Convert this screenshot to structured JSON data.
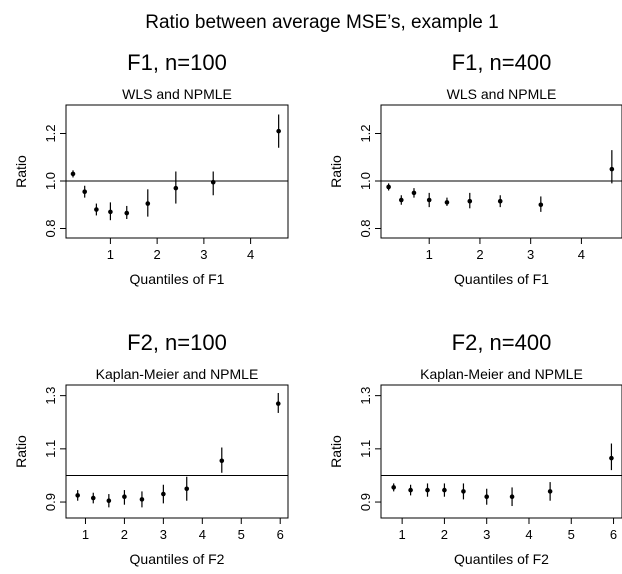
{
  "figure_title": "Ratio between average MSE’s, example 1",
  "chart_data": [
    {
      "type": "scatter",
      "panel_title": "F1, n=100",
      "title": "WLS and NPMLE",
      "xlabel": "Quantiles of F1",
      "ylabel": "Ratio",
      "xticks": [
        1,
        2,
        3,
        4
      ],
      "yticks": [
        0.8,
        1.0,
        1.2
      ],
      "ytick_labels": [
        "0.8",
        "1.0",
        "1.2"
      ],
      "xlim": [
        0.05,
        4.8
      ],
      "ylim": [
        0.76,
        1.32
      ],
      "reference_line": 1.0,
      "points": [
        {
          "x": 0.2,
          "y": 1.03,
          "lo": 1.015,
          "hi": 1.045
        },
        {
          "x": 0.45,
          "y": 0.955,
          "lo": 0.93,
          "hi": 0.98
        },
        {
          "x": 0.7,
          "y": 0.88,
          "lo": 0.855,
          "hi": 0.905
        },
        {
          "x": 1.0,
          "y": 0.87,
          "lo": 0.835,
          "hi": 0.91
        },
        {
          "x": 1.35,
          "y": 0.865,
          "lo": 0.84,
          "hi": 0.895
        },
        {
          "x": 1.8,
          "y": 0.905,
          "lo": 0.85,
          "hi": 0.965
        },
        {
          "x": 2.4,
          "y": 0.97,
          "lo": 0.905,
          "hi": 1.04
        },
        {
          "x": 3.2,
          "y": 0.995,
          "lo": 0.94,
          "hi": 1.04
        },
        {
          "x": 4.6,
          "y": 1.21,
          "lo": 1.14,
          "hi": 1.28
        }
      ]
    },
    {
      "type": "scatter",
      "panel_title": "F1, n=400",
      "title": "WLS and NPMLE",
      "xlabel": "Quantiles of F1",
      "ylabel": "Ratio",
      "xticks": [
        1,
        2,
        3,
        4
      ],
      "yticks": [
        0.8,
        1.0,
        1.2
      ],
      "ytick_labels": [
        "0.8",
        "1.0",
        "1.2"
      ],
      "xlim": [
        0.05,
        4.8
      ],
      "ylim": [
        0.76,
        1.32
      ],
      "reference_line": 1.0,
      "points": [
        {
          "x": 0.2,
          "y": 0.975,
          "lo": 0.96,
          "hi": 0.99
        },
        {
          "x": 0.45,
          "y": 0.92,
          "lo": 0.9,
          "hi": 0.94
        },
        {
          "x": 0.7,
          "y": 0.95,
          "lo": 0.93,
          "hi": 0.97
        },
        {
          "x": 1.0,
          "y": 0.92,
          "lo": 0.89,
          "hi": 0.95
        },
        {
          "x": 1.35,
          "y": 0.91,
          "lo": 0.895,
          "hi": 0.93
        },
        {
          "x": 1.8,
          "y": 0.915,
          "lo": 0.885,
          "hi": 0.95
        },
        {
          "x": 2.4,
          "y": 0.915,
          "lo": 0.89,
          "hi": 0.94
        },
        {
          "x": 3.2,
          "y": 0.9,
          "lo": 0.87,
          "hi": 0.935
        },
        {
          "x": 4.6,
          "y": 1.05,
          "lo": 0.99,
          "hi": 1.13
        }
      ]
    },
    {
      "type": "scatter",
      "panel_title": "F2, n=100",
      "title": "Kaplan-Meier and NPMLE",
      "xlabel": "Quantiles of F2",
      "ylabel": "Ratio",
      "xticks": [
        1,
        2,
        3,
        4,
        5,
        6
      ],
      "yticks": [
        0.9,
        1.1,
        1.3
      ],
      "ytick_labels": [
        "0.9",
        "1.1",
        "1.3"
      ],
      "xlim": [
        0.5,
        6.2
      ],
      "ylim": [
        0.84,
        1.34
      ],
      "reference_line": 1.0,
      "points": [
        {
          "x": 0.8,
          "y": 0.925,
          "lo": 0.905,
          "hi": 0.945
        },
        {
          "x": 1.2,
          "y": 0.915,
          "lo": 0.895,
          "hi": 0.935
        },
        {
          "x": 1.6,
          "y": 0.905,
          "lo": 0.88,
          "hi": 0.93
        },
        {
          "x": 2.0,
          "y": 0.92,
          "lo": 0.89,
          "hi": 0.945
        },
        {
          "x": 2.45,
          "y": 0.91,
          "lo": 0.88,
          "hi": 0.94
        },
        {
          "x": 3.0,
          "y": 0.93,
          "lo": 0.895,
          "hi": 0.965
        },
        {
          "x": 3.6,
          "y": 0.95,
          "lo": 0.905,
          "hi": 0.995
        },
        {
          "x": 4.5,
          "y": 1.055,
          "lo": 1.01,
          "hi": 1.105
        },
        {
          "x": 5.95,
          "y": 1.27,
          "lo": 1.235,
          "hi": 1.31
        }
      ]
    },
    {
      "type": "scatter",
      "panel_title": "F2, n=400",
      "title": "Kaplan-Meier and NPMLE",
      "xlabel": "Quantiles of F2",
      "ylabel": "Ratio",
      "xticks": [
        1,
        2,
        3,
        4,
        5,
        6
      ],
      "yticks": [
        0.9,
        1.1,
        1.3
      ],
      "ytick_labels": [
        "0.9",
        "1.1",
        "1.3"
      ],
      "xlim": [
        0.5,
        6.2
      ],
      "ylim": [
        0.84,
        1.34
      ],
      "reference_line": 1.0,
      "points": [
        {
          "x": 0.8,
          "y": 0.955,
          "lo": 0.94,
          "hi": 0.97
        },
        {
          "x": 1.2,
          "y": 0.945,
          "lo": 0.925,
          "hi": 0.965
        },
        {
          "x": 1.6,
          "y": 0.945,
          "lo": 0.92,
          "hi": 0.97
        },
        {
          "x": 2.0,
          "y": 0.945,
          "lo": 0.92,
          "hi": 0.97
        },
        {
          "x": 2.45,
          "y": 0.94,
          "lo": 0.91,
          "hi": 0.97
        },
        {
          "x": 3.0,
          "y": 0.92,
          "lo": 0.89,
          "hi": 0.95
        },
        {
          "x": 3.6,
          "y": 0.92,
          "lo": 0.885,
          "hi": 0.955
        },
        {
          "x": 4.5,
          "y": 0.94,
          "lo": 0.905,
          "hi": 0.975
        },
        {
          "x": 5.95,
          "y": 1.065,
          "lo": 1.02,
          "hi": 1.12
        }
      ]
    }
  ]
}
